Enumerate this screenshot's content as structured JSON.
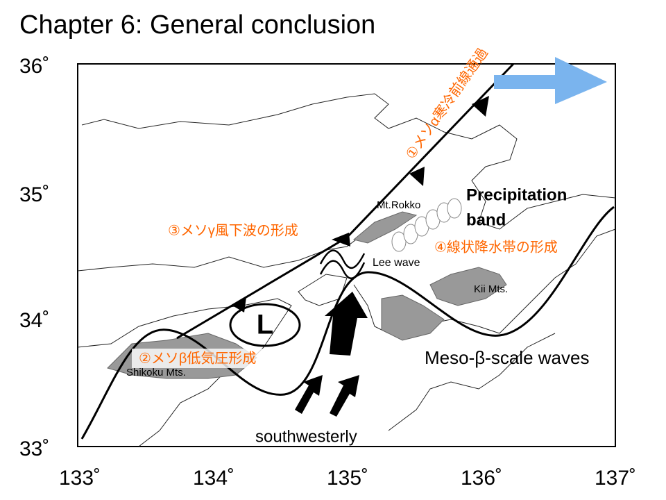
{
  "header": {
    "title": "Chapter 6: General conclusion"
  },
  "map": {
    "lat_labels": [
      "36˚",
      "35˚",
      "34˚",
      "33˚"
    ],
    "lon_labels": [
      "133˚",
      "134˚",
      "135˚",
      "136˚",
      "137˚"
    ]
  },
  "annotations": {
    "front_passage": "①メソα寒冷前線通過",
    "low_formation": "②メソβ低気圧形成",
    "lee_wave_formation": "③メソγ風下波の形成",
    "band_formation": "④線状降水帯の形成",
    "precipitation_band": [
      "Precipitation",
      "band"
    ],
    "mt_rokko": "Mt.Rokko",
    "lee_wave": "Lee wave",
    "kii": "Kii Mts.",
    "shikoku": "Shikoku Mts.",
    "waves": "Meso-β-scale waves",
    "wind": "southwesterly",
    "low": "L"
  }
}
